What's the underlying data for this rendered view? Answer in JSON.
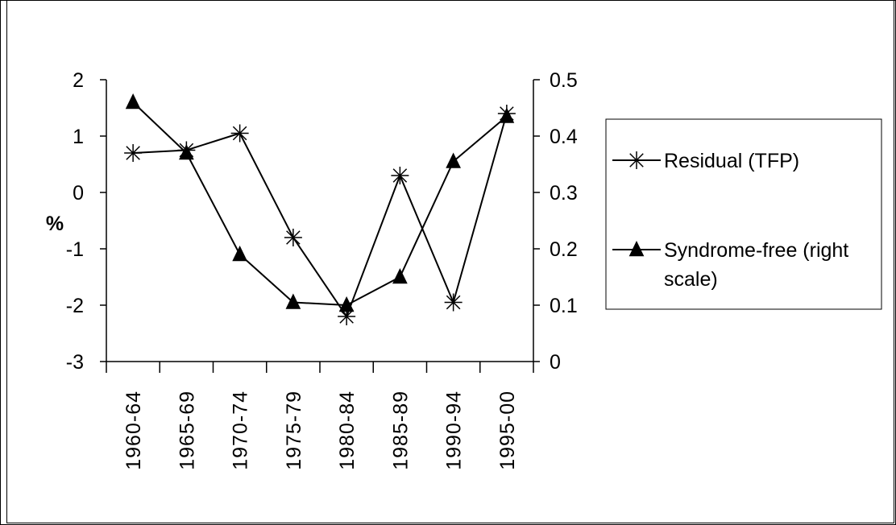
{
  "chart_data": {
    "type": "line",
    "categories": [
      "1960-64",
      "1965-69",
      "1970-74",
      "1975-79",
      "1980-84",
      "1985-89",
      "1990-94",
      "1995-00"
    ],
    "ylabel": "%",
    "left_axis": {
      "ylim": [
        -3,
        2
      ],
      "ticks": [
        "2",
        "1",
        "0",
        "-1",
        "-2",
        "-3"
      ]
    },
    "right_axis": {
      "ylim": [
        0,
        0.5
      ],
      "ticks": [
        "0.5",
        "0.4",
        "0.3",
        "0.2",
        "0.1",
        "0"
      ]
    },
    "grid": false,
    "legend_position": "right",
    "series": [
      {
        "name": "Residual (TFP)",
        "axis": "left",
        "marker": "asterisk",
        "values": [
          0.7,
          0.75,
          1.05,
          -0.8,
          -2.2,
          0.3,
          -1.95,
          1.4
        ]
      },
      {
        "name": "Syndrome-free (right scale)",
        "axis": "right",
        "marker": "triangle",
        "values": [
          0.46,
          0.37,
          0.19,
          0.105,
          0.1,
          0.15,
          0.355,
          0.435
        ]
      }
    ],
    "legend": [
      "Residual (TFP)",
      "Syndrome-free (right",
      "scale)"
    ],
    "colors": {
      "line": "#000000",
      "background": "#ffffff"
    }
  }
}
